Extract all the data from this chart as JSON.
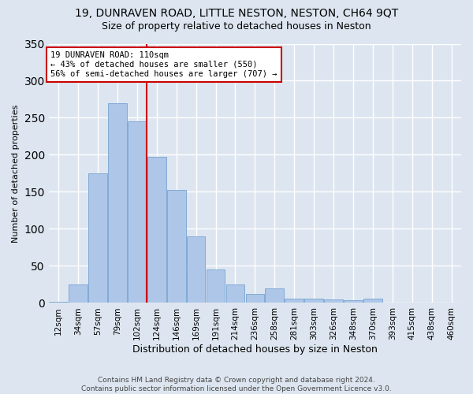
{
  "title1": "19, DUNRAVEN ROAD, LITTLE NESTON, NESTON, CH64 9QT",
  "title2": "Size of property relative to detached houses in Neston",
  "xlabel": "Distribution of detached houses by size in Neston",
  "ylabel": "Number of detached properties",
  "categories": [
    "12sqm",
    "34sqm",
    "57sqm",
    "79sqm",
    "102sqm",
    "124sqm",
    "146sqm",
    "169sqm",
    "191sqm",
    "214sqm",
    "236sqm",
    "258sqm",
    "281sqm",
    "303sqm",
    "326sqm",
    "348sqm",
    "370sqm",
    "393sqm",
    "415sqm",
    "438sqm",
    "460sqm"
  ],
  "values": [
    2,
    25,
    175,
    270,
    245,
    197,
    153,
    90,
    45,
    25,
    12,
    20,
    6,
    6,
    5,
    4,
    6,
    0,
    0,
    0,
    0
  ],
  "bar_color": "#aec6e8",
  "bar_edge_color": "#6699cc",
  "vline_index": 4,
  "vline_color": "#cc0000",
  "annotation_text": "19 DUNRAVEN ROAD: 110sqm\n← 43% of detached houses are smaller (550)\n56% of semi-detached houses are larger (707) →",
  "annotation_box_color": "#ffffff",
  "annotation_box_edge": "#cc0000",
  "background_color": "#dde6f0",
  "grid_color": "#ffffff",
  "footer_text": "Contains HM Land Registry data © Crown copyright and database right 2024.\nContains public sector information licensed under the Open Government Licence v3.0.",
  "ylim": [
    0,
    350
  ],
  "title1_fontsize": 10,
  "title2_fontsize": 9,
  "ylabel_fontsize": 8,
  "xlabel_fontsize": 9,
  "tick_fontsize": 7.5,
  "annot_fontsize": 7.5
}
